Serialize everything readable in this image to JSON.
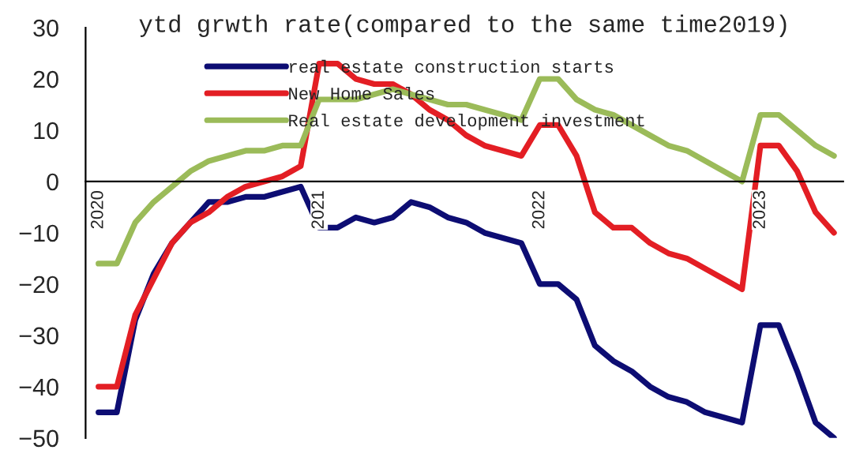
{
  "chart_data": {
    "type": "line",
    "title": "ytd grwth rate(compared to the same time2019)",
    "categories": [
      "2020",
      null,
      null,
      null,
      null,
      null,
      null,
      null,
      null,
      null,
      null,
      null,
      "2021",
      null,
      null,
      null,
      null,
      null,
      null,
      null,
      null,
      null,
      null,
      null,
      "2022",
      null,
      null,
      null,
      null,
      null,
      null,
      null,
      null,
      null,
      null,
      null,
      "2023",
      null,
      null,
      null,
      null
    ],
    "series": [
      {
        "name": "real estate construction starts",
        "color": "#0d0d73",
        "values": [
          -45,
          -45,
          -27,
          -18,
          -12,
          -8,
          -4,
          -4,
          -3,
          -3,
          -2,
          -1,
          -9,
          -9,
          -7,
          -8,
          -7,
          -4,
          -5,
          -7,
          -8,
          -10,
          -11,
          -12,
          -20,
          -20,
          -23,
          -32,
          -35,
          -37,
          -40,
          -42,
          -43,
          -45,
          -46,
          -47,
          -28,
          -28,
          -37,
          -47,
          -50
        ]
      },
      {
        "name": "New Home Sales",
        "color": "#e31e24",
        "values": [
          -40,
          -40,
          -26,
          -19,
          -12,
          -8,
          -6,
          -3,
          -1,
          0,
          1,
          3,
          23,
          23,
          20,
          19,
          19,
          17,
          14,
          12,
          9,
          7,
          6,
          5,
          11,
          11,
          5,
          -6,
          -9,
          -9,
          -12,
          -14,
          -15,
          -17,
          -19,
          -21,
          7,
          7,
          2,
          -6,
          -10
        ]
      },
      {
        "name": "Real estate development investment",
        "color": "#9bbb59",
        "values": [
          -16,
          -16,
          -8,
          -4,
          -1,
          2,
          4,
          5,
          6,
          6,
          7,
          7,
          16,
          16,
          16,
          17,
          18,
          17,
          16,
          15,
          15,
          14,
          13,
          12,
          20,
          20,
          16,
          14,
          13,
          11,
          9,
          7,
          6,
          4,
          2,
          0,
          13,
          13,
          10,
          7,
          5
        ]
      }
    ],
    "ylim": [
      -50,
      30
    ],
    "yticks": [
      -50,
      -40,
      -30,
      -20,
      -10,
      0,
      10,
      20,
      30
    ],
    "grid": false,
    "legend": "top",
    "marker": "none",
    "line_style": "solid"
  }
}
